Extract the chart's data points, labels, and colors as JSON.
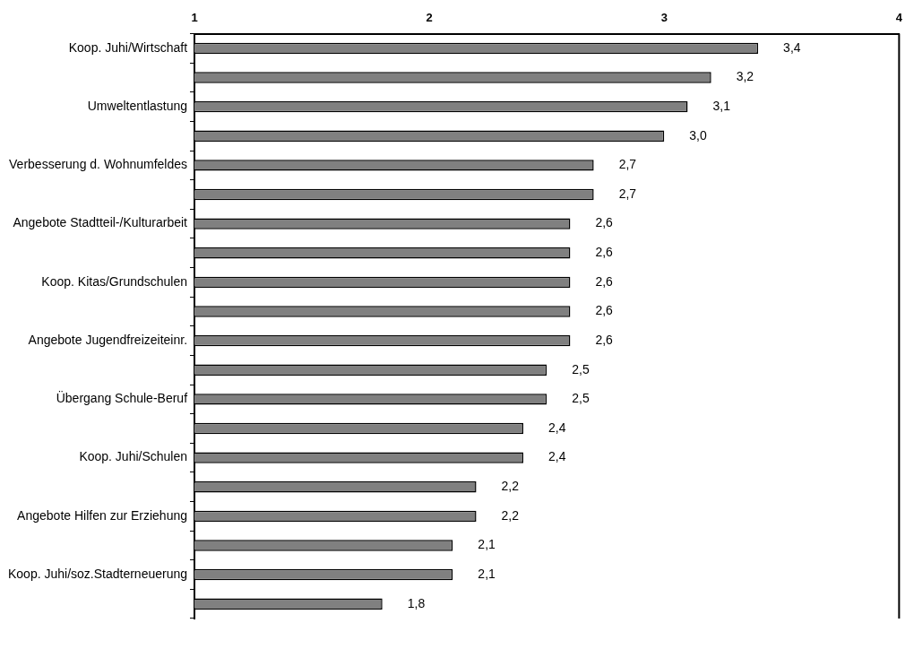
{
  "chart_data": {
    "type": "bar",
    "orientation": "horizontal",
    "categories": [
      "Koop. Juhi/Wirtschaft",
      null,
      "Umweltentlastung",
      null,
      "Verbesserung d. Wohnumfeldes",
      null,
      "Angebote Stadtteil-/Kulturarbeit",
      null,
      "Koop. Kitas/Grundschulen",
      null,
      "Angebote Jugendfreizeiteinr.",
      null,
      "Übergang Schule-Beruf",
      null,
      "Koop. Juhi/Schulen",
      null,
      "Angebote Hilfen zur Erziehung",
      null,
      "Koop. Juhi/soz.Stadterneuerung",
      null
    ],
    "values": [
      3.4,
      3.2,
      3.1,
      3.0,
      2.7,
      2.7,
      2.6,
      2.6,
      2.6,
      2.6,
      2.6,
      2.5,
      2.5,
      2.4,
      2.4,
      2.2,
      2.2,
      2.1,
      2.1,
      1.8
    ],
    "value_labels": [
      "3,4",
      "3,2",
      "3,1",
      "3,0",
      "2,7",
      "2,7",
      "2,6",
      "2,6",
      "2,6",
      "2,6",
      "2,6",
      "2,5",
      "2,5",
      "2,4",
      "2,4",
      "2,2",
      "2,2",
      "2,1",
      "2,1",
      "1,8"
    ],
    "color": "#808080",
    "xlim": [
      1,
      4
    ],
    "xticks": [
      1,
      2,
      3,
      4
    ],
    "grid": false,
    "legend": false
  }
}
